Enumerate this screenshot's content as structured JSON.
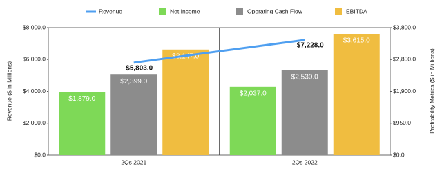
{
  "chart_data": {
    "type": "bar",
    "categories": [
      "2Qs 2021",
      "2Qs 2022"
    ],
    "y_label": "Revenue ($ in Millions)",
    "y2_label": "Profitability Metrics ($ in Millions)",
    "ylim": [
      0,
      8000
    ],
    "yticks": [
      {
        "value": 0,
        "label": "$0.0"
      },
      {
        "value": 2000,
        "label": "$2,000.0"
      },
      {
        "value": 4000,
        "label": "$4,000.0"
      },
      {
        "value": 6000,
        "label": "$6,000.0"
      },
      {
        "value": 8000,
        "label": "$8,000.0"
      }
    ],
    "y2lim": [
      0,
      3800
    ],
    "y2ticks": [
      {
        "value": 0,
        "label": "$0.0"
      },
      {
        "value": 950,
        "label": "$950.0"
      },
      {
        "value": 1900,
        "label": "$1,900.0"
      },
      {
        "value": 2850,
        "label": "$2,850.0"
      },
      {
        "value": 3800,
        "label": "$3,800.0"
      }
    ],
    "grid": false,
    "legend": "top",
    "series": [
      {
        "name": "Revenue",
        "type": "line",
        "axis": "y",
        "color": "#4f9ff0",
        "values": [
          5803,
          7228
        ],
        "value_labels": [
          "$5,803.0",
          "$7,228.0"
        ]
      },
      {
        "name": "Net Income",
        "type": "bar",
        "axis": "y2",
        "color": "#7ed957",
        "values": [
          1879,
          2037
        ],
        "value_labels": [
          "$1,879.0",
          "$2,037.0"
        ]
      },
      {
        "name": "Operating Cash Flow",
        "type": "bar",
        "axis": "y2",
        "color": "#8c8c8c",
        "values": [
          2399,
          2530
        ],
        "value_labels": [
          "$2,399.0",
          "$2,530.0"
        ]
      },
      {
        "name": "EBITDA",
        "type": "bar",
        "axis": "y2",
        "color": "#f0bd40",
        "values": [
          3147,
          3615
        ],
        "value_labels": [
          "$3,147.0",
          "$3,615.0"
        ]
      }
    ]
  }
}
